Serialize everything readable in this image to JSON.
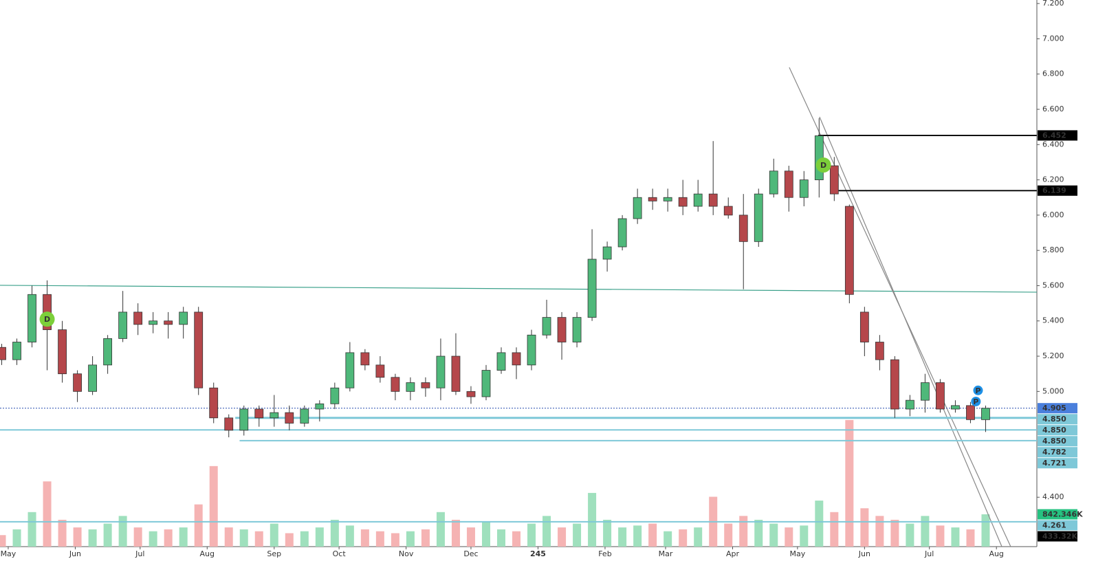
{
  "chart_data": {
    "type": "candlestick",
    "x": [
      -3,
      4,
      11,
      18,
      25,
      32,
      39,
      46,
      53,
      60,
      67,
      74,
      81,
      88,
      95,
      102,
      109,
      116,
      123,
      130,
      137,
      144,
      151,
      158,
      165,
      172,
      179,
      186,
      193,
      200,
      207,
      214,
      221,
      228,
      235,
      242,
      249,
      256,
      263,
      270,
      277,
      284,
      291,
      298,
      305,
      312,
      319,
      326,
      333,
      340,
      347,
      354,
      361,
      368,
      375,
      382,
      389,
      396,
      403,
      410,
      417,
      424,
      431,
      438,
      445,
      452
    ],
    "open": [
      5.25,
      5.18,
      5.28,
      5.55,
      5.35,
      5.1,
      5.0,
      5.15,
      5.3,
      5.45,
      5.38,
      5.4,
      5.38,
      5.45,
      5.02,
      4.85,
      4.78,
      4.9,
      4.85,
      4.88,
      4.82,
      4.9,
      4.93,
      5.02,
      5.22,
      5.15,
      5.08,
      5.0,
      5.05,
      5.02,
      5.2,
      5.0,
      4.97,
      5.12,
      5.22,
      5.15,
      5.32,
      5.42,
      5.28,
      5.42,
      5.75,
      5.82,
      5.98,
      6.1,
      6.08,
      6.1,
      6.05,
      6.12,
      6.05,
      6.0,
      5.85,
      6.12,
      6.25,
      6.1,
      6.2,
      6.28,
      6.05,
      5.45,
      5.28,
      5.18,
      4.9,
      4.95,
      5.05,
      4.9,
      4.92,
      4.84
    ],
    "high": [
      5.27,
      5.3,
      5.6,
      5.63,
      5.4,
      5.12,
      5.2,
      5.32,
      5.57,
      5.5,
      5.45,
      5.45,
      5.48,
      5.48,
      5.05,
      4.87,
      4.92,
      4.92,
      4.98,
      4.92,
      4.92,
      4.95,
      5.05,
      5.28,
      5.24,
      5.2,
      5.1,
      5.08,
      5.08,
      5.3,
      5.33,
      5.03,
      5.15,
      5.25,
      5.25,
      5.35,
      5.52,
      5.45,
      5.45,
      5.92,
      5.85,
      6.0,
      6.15,
      6.15,
      6.15,
      6.2,
      6.2,
      6.42,
      6.1,
      6.12,
      6.15,
      6.32,
      6.28,
      6.25,
      6.55,
      6.33,
      6.06,
      5.48,
      5.32,
      5.2,
      4.98,
      5.1,
      5.07,
      4.95,
      4.94,
      4.92
    ],
    "low": [
      5.15,
      5.15,
      5.25,
      5.12,
      5.05,
      4.94,
      4.98,
      5.1,
      5.28,
      5.32,
      5.33,
      5.3,
      5.3,
      4.98,
      4.82,
      4.74,
      4.75,
      4.8,
      4.8,
      4.78,
      4.8,
      4.83,
      4.9,
      5.0,
      5.12,
      5.05,
      4.95,
      4.95,
      4.97,
      4.95,
      4.98,
      4.93,
      4.95,
      5.1,
      5.07,
      5.12,
      5.3,
      5.18,
      5.25,
      5.4,
      5.68,
      5.8,
      5.95,
      6.03,
      6.02,
      6.0,
      6.02,
      6.0,
      5.98,
      5.58,
      5.82,
      6.1,
      6.02,
      6.05,
      6.1,
      6.08,
      5.5,
      5.2,
      5.12,
      4.85,
      4.86,
      4.88,
      4.88,
      4.88,
      4.82,
      4.77
    ],
    "close": [
      5.18,
      5.28,
      5.55,
      5.35,
      5.1,
      5.0,
      5.15,
      5.3,
      5.45,
      5.38,
      5.4,
      5.38,
      5.45,
      5.02,
      4.85,
      4.78,
      4.9,
      4.85,
      4.88,
      4.82,
      4.9,
      4.93,
      5.02,
      5.22,
      5.15,
      5.08,
      5.0,
      5.05,
      5.02,
      5.2,
      5.0,
      4.97,
      5.12,
      5.22,
      5.15,
      5.32,
      5.42,
      5.28,
      5.42,
      5.75,
      5.82,
      5.98,
      6.1,
      6.08,
      6.1,
      6.05,
      6.12,
      6.05,
      6.0,
      5.85,
      6.12,
      6.25,
      6.1,
      6.2,
      6.45,
      6.12,
      5.55,
      5.28,
      5.18,
      4.9,
      4.95,
      5.05,
      4.9,
      4.92,
      4.84,
      4.905
    ],
    "volume": [
      300,
      450,
      900,
      1700,
      700,
      500,
      450,
      600,
      800,
      500,
      400,
      450,
      500,
      1100,
      2100,
      500,
      450,
      400,
      600,
      350,
      400,
      500,
      700,
      550,
      450,
      400,
      350,
      400,
      450,
      900,
      700,
      500,
      650,
      450,
      400,
      600,
      800,
      500,
      600,
      1400,
      700,
      500,
      550,
      600,
      400,
      450,
      500,
      1300,
      600,
      800,
      700,
      600,
      500,
      550,
      1200,
      900,
      3300,
      1000,
      800,
      700,
      600,
      800,
      550,
      500,
      450,
      842.346
    ],
    "up_color": "#4fb87a",
    "down_color": "#b5474b",
    "volume_up_color": "#9fe0bd",
    "volume_down_color": "#f5b3b3",
    "xlim": [
      -3.8,
      475.7
    ],
    "xticks": [
      {
        "value": 0,
        "label": "May"
      },
      {
        "value": 31,
        "label": "Jun"
      },
      {
        "value": 61,
        "label": "Jul"
      },
      {
        "value": 92,
        "label": "Aug"
      },
      {
        "value": 123,
        "label": "Sep"
      },
      {
        "value": 153,
        "label": "Oct"
      },
      {
        "value": 184,
        "label": "Nov"
      },
      {
        "value": 214,
        "label": "Dec"
      },
      245,
      {
        "value": 276,
        "label": "Feb"
      },
      {
        "value": 304,
        "label": "Mar"
      },
      {
        "value": 335,
        "label": "Apr"
      },
      {
        "value": 365,
        "label": "May"
      },
      {
        "value": 396,
        "label": "Jun"
      },
      {
        "value": 426,
        "label": "Jul"
      },
      {
        "value": 457,
        "label": "Aug"
      }
    ],
    "ylim": [
      4.12,
      7.22
    ],
    "yticks": [
      {
        "value": 4.4,
        "label": "4.400"
      },
      {
        "value": 5.0,
        "label": "5.000"
      },
      {
        "value": 5.2,
        "label": "5.200"
      },
      {
        "value": 5.4,
        "label": "5.400"
      },
      {
        "value": 5.6,
        "label": "5.600"
      },
      {
        "value": 5.8,
        "label": "5.800"
      },
      {
        "value": 6.0,
        "label": "6.000"
      },
      {
        "value": 6.2,
        "label": "6.200"
      },
      {
        "value": 6.4,
        "label": "6.400"
      },
      {
        "value": 6.6,
        "label": "6.600"
      },
      {
        "value": 6.8,
        "label": "6.800"
      },
      {
        "value": 7.0,
        "label": "7.000"
      },
      {
        "value": 7.2,
        "label": "7.200"
      }
    ],
    "vlim": [
      0,
      14250
    ],
    "lines": [
      {
        "from": [
          -3.8,
          5.602
        ],
        "to": [
          475.7,
          5.563
        ],
        "color": "#3aa08a"
      },
      {
        "from": [
          361.2,
          6.838
        ],
        "to": [
          463.6,
          4.12
        ],
        "color": "#888888"
      },
      {
        "from": [
          375.2,
          6.557
        ],
        "to": [
          459.5,
          4.12
        ],
        "color": "#888888"
      }
    ],
    "levels": [
      {
        "value": 6.452,
        "from": 374.6,
        "color": "#111111",
        "width": 2
      },
      {
        "value": 6.139,
        "from": 384,
        "color": "#111111",
        "width": 2
      },
      {
        "value": 4.85,
        "from": 105,
        "color": "#7ec8d8",
        "width": 3
      },
      {
        "value": 4.782,
        "from": -3.8,
        "color": "#7ec8d8",
        "width": 2
      },
      {
        "value": 4.721,
        "from": 107,
        "color": "#7ec8d8",
        "width": 2
      },
      {
        "value": 4.261,
        "from": -3.8,
        "color": "#7ec8d8",
        "width": 2
      },
      {
        "value": 4.905,
        "from": -3.8,
        "color": "#2a4fb0",
        "width": 1,
        "dashed": true
      }
    ],
    "tags": [
      {
        "value": 6.452,
        "label": "6.452",
        "color": "#000000"
      },
      {
        "value": 6.139,
        "label": "6.139",
        "color": "#000000"
      },
      {
        "value": 4.905,
        "label": "4.905",
        "color": "#4a7fdc"
      },
      {
        "value": 4.85,
        "label": "4.850",
        "color": "#7ec8d8"
      },
      {
        "value": 4.85,
        "label": "4.850",
        "color": "#7ec8d8"
      },
      {
        "value": 4.85,
        "label": "4.850",
        "color": "#7ec8d8"
      },
      {
        "value": 4.782,
        "label": "4.782",
        "color": "#7ec8d8"
      },
      {
        "value": 4.721,
        "label": "4.721",
        "color": "#7ec8d8"
      },
      {
        "value": 842.346,
        "label": "842.346K",
        "color": "#26c281",
        "scale": "volume"
      },
      {
        "value": 4.261,
        "label": "4.261",
        "color": "#7ec8d8"
      },
      {
        "value": 433.32,
        "label": "433.32K",
        "color": "#000000",
        "scale": "volume"
      }
    ],
    "markers": [
      {
        "x": 18,
        "y": 5.41,
        "label": "D",
        "color": "#7ccf3a"
      },
      {
        "x": 377,
        "y": 6.284,
        "label": "D",
        "color": "#7ccf3a"
      },
      {
        "x": 448.5,
        "y": 5.006,
        "label": "P",
        "color": "#1e90e6"
      },
      {
        "x": 447.5,
        "y": 4.943,
        "label": "P",
        "color": "#1e90e6"
      }
    ]
  }
}
